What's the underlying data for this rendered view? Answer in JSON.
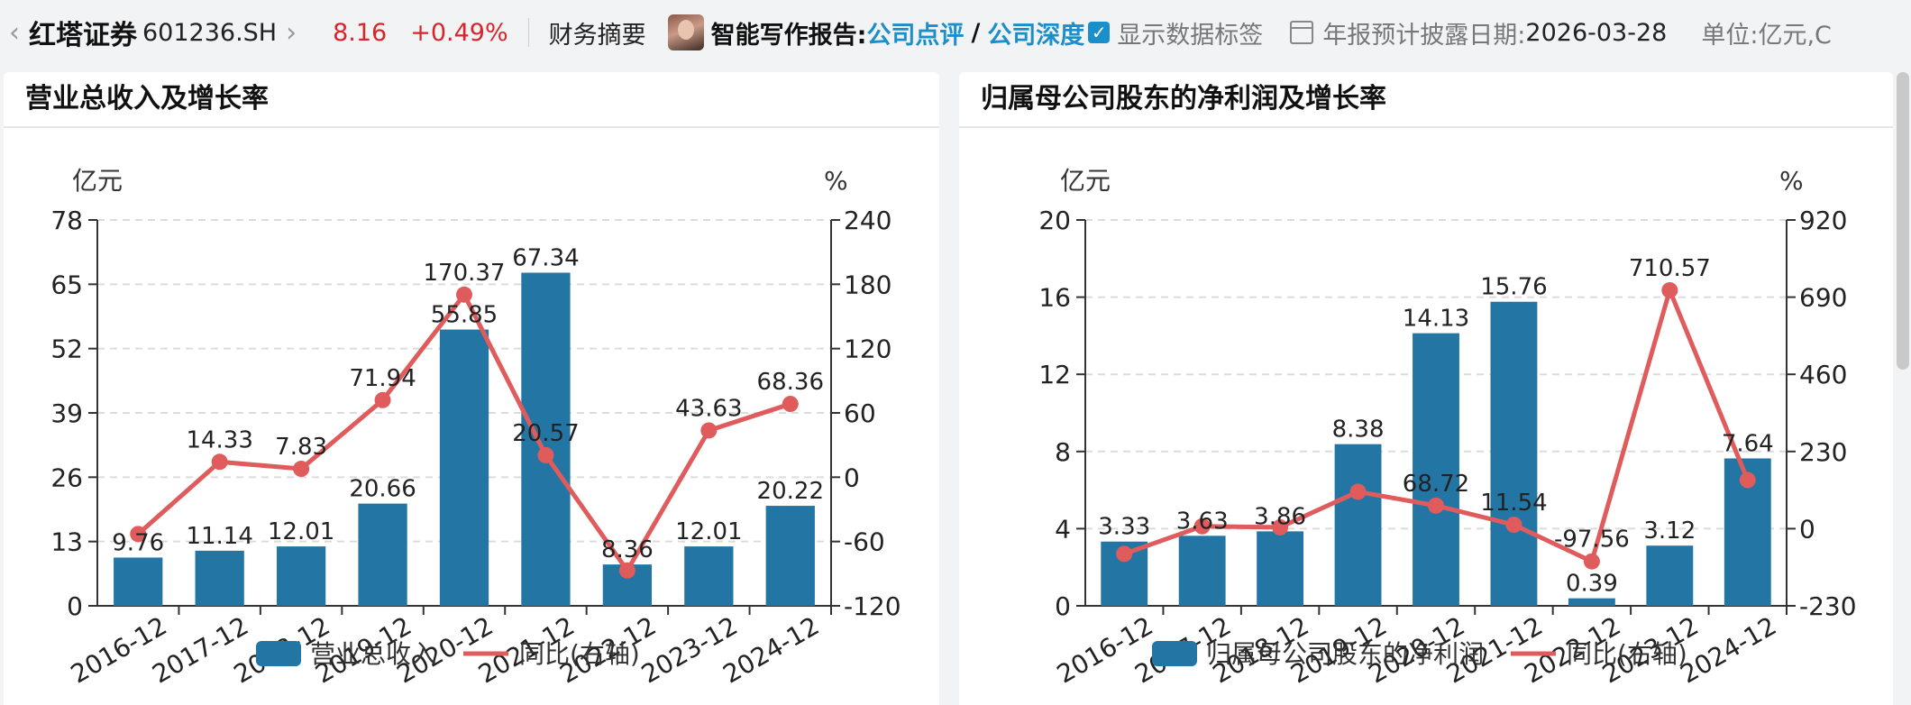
{
  "topbar": {
    "back_glyph": "‹",
    "forward_glyph": "›",
    "stock_name": "红塔证券",
    "stock_code": "601236.SH",
    "price": "8.16",
    "change": "+0.49%",
    "summary": "财务摘要",
    "report_label": "智能写作报告:",
    "link_review": "公司点评",
    "slash": "/",
    "link_deep": "公司深度",
    "show_labels": "显示数据标签",
    "disclosure_label": "年报预计披露日期:",
    "disclosure_date": "2026-03-28",
    "unit": "单位:亿元,C"
  },
  "icons": {
    "back": "chevron-left-icon",
    "forward": "chevron-right-icon",
    "checkbox": "checkbox-checked-icon",
    "calendar": "calendar-icon"
  },
  "colors": {
    "bar": "#2376a4",
    "line": "#e05c5c",
    "accent": "#1a8fc9",
    "up": "#d9252a"
  },
  "chart_data": [
    {
      "type": "bar",
      "title": "营业总收入及增长率",
      "categories": [
        "2016-12",
        "2017-12",
        "2018-12",
        "2019-12",
        "2020-12",
        "2021-12",
        "2022-12",
        "2023-12",
        "2024-12"
      ],
      "left_axis_unit": "亿元",
      "right_axis_unit": "%",
      "left_ticks": [
        0,
        13,
        26,
        39,
        52,
        65,
        78
      ],
      "right_ticks": [
        -120,
        -60,
        0,
        60,
        120,
        180,
        240
      ],
      "ylim_left": [
        0,
        78
      ],
      "ylim_right": [
        -120,
        240
      ],
      "grid": true,
      "legend_position": "bottom",
      "series": [
        {
          "name": "营业总收入",
          "kind": "bar",
          "axis": "left",
          "values": [
            9.76,
            11.14,
            12.01,
            20.66,
            55.85,
            67.34,
            8.36,
            12.01,
            20.22
          ]
        },
        {
          "name": "同比(右轴)",
          "kind": "line",
          "axis": "right",
          "values": [
            -53,
            14.33,
            7.83,
            71.94,
            170.37,
            20.57,
            -87,
            43.63,
            68.36
          ]
        }
      ],
      "line_labels": [
        "",
        "14.33",
        "7.83",
        "71.94",
        "170.37",
        "20.57",
        "",
        "43.63",
        "68.36"
      ]
    },
    {
      "type": "bar",
      "title": "归属母公司股东的净利润及增长率",
      "categories": [
        "2016-12",
        "2017-12",
        "2018-12",
        "2019-12",
        "2020-12",
        "2021-12",
        "2022-12",
        "2023-12",
        "2024-12"
      ],
      "left_axis_unit": "亿元",
      "right_axis_unit": "%",
      "left_ticks": [
        0,
        4,
        8,
        12,
        16,
        20
      ],
      "right_ticks": [
        -230,
        0,
        230,
        460,
        690,
        920
      ],
      "ylim_left": [
        0,
        20
      ],
      "ylim_right": [
        -230,
        920
      ],
      "grid": true,
      "legend_position": "bottom",
      "series": [
        {
          "name": "归属母公司股东的净利润",
          "kind": "bar",
          "axis": "left",
          "values": [
            3.33,
            3.63,
            3.86,
            8.38,
            14.13,
            15.76,
            0.39,
            3.12,
            7.64
          ]
        },
        {
          "name": "同比(右轴)",
          "kind": "line",
          "axis": "right",
          "values": [
            -75,
            7,
            4,
            110,
            68.72,
            11.54,
            -97.56,
            710.57,
            145
          ]
        }
      ],
      "line_labels": [
        "",
        "",
        "",
        "",
        "68.72",
        "11.54",
        "-97.56",
        "710.57",
        ""
      ]
    }
  ]
}
